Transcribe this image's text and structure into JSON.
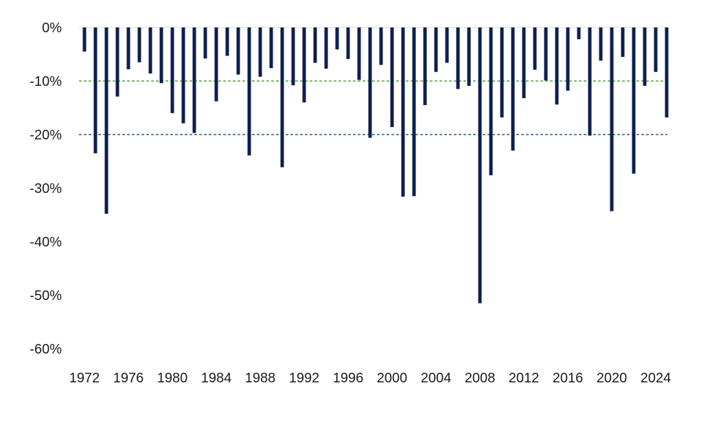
{
  "chart_data": {
    "type": "bar",
    "title": "",
    "xlabel": "",
    "ylabel": "",
    "x": [
      1972,
      1973,
      1974,
      1975,
      1976,
      1977,
      1978,
      1979,
      1980,
      1981,
      1982,
      1983,
      1984,
      1985,
      1986,
      1987,
      1988,
      1989,
      1990,
      1991,
      1992,
      1993,
      1994,
      1995,
      1996,
      1997,
      1998,
      1999,
      2000,
      2001,
      2002,
      2003,
      2004,
      2005,
      2006,
      2007,
      2008,
      2009,
      2010,
      2011,
      2012,
      2013,
      2014,
      2015,
      2016,
      2017,
      2018,
      2019,
      2020,
      2021,
      2022,
      2023,
      2024,
      2025
    ],
    "values": [
      -4.5,
      -23.5,
      -34.8,
      -12.9,
      -7.8,
      -6.5,
      -8.6,
      -10.4,
      -16.0,
      -17.9,
      -19.7,
      -5.8,
      -13.8,
      -5.3,
      -8.8,
      -23.9,
      -9.2,
      -7.6,
      -26.1,
      -10.8,
      -14.0,
      -6.6,
      -7.7,
      -4.1,
      -5.9,
      -9.8,
      -20.6,
      -7.0,
      -18.6,
      -31.6,
      -31.5,
      -14.5,
      -8.3,
      -6.6,
      -11.5,
      -10.9,
      -51.5,
      -27.6,
      -16.8,
      -23.0,
      -13.2,
      -7.9,
      -9.9,
      -14.4,
      -11.8,
      -2.2,
      -20.2,
      -6.2,
      -34.3,
      -5.5,
      -27.3,
      -10.9,
      -8.3,
      -16.8
    ],
    "x_tick_labels": [
      "1972",
      "1976",
      "1980",
      "1984",
      "1988",
      "1992",
      "1996",
      "2000",
      "2004",
      "2008",
      "2012",
      "2016",
      "2020",
      "2024"
    ],
    "y_tick_labels": [
      "0%",
      "-10%",
      "-20%",
      "-30%",
      "-40%",
      "-50%",
      "-60%"
    ],
    "y_ticks": [
      0,
      -10,
      -20,
      -30,
      -40,
      -50,
      -60
    ],
    "ylim": [
      -60,
      0
    ],
    "reference_lines": [
      {
        "value": -10,
        "color": "#5a9a3c",
        "style": "dashed"
      },
      {
        "value": -20,
        "color": "#1f5f8b",
        "style": "dashed"
      }
    ],
    "bar_color": "#0d1f4f",
    "grid": false,
    "legend": "none"
  }
}
